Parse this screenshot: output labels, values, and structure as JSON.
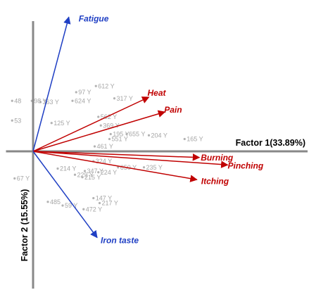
{
  "chart_data": {
    "type": "scatter",
    "xlabel": "Factor 1(33.89%)",
    "ylabel": "Factor 2 (15.55%)",
    "xlim": [
      -0.22,
      1.9
    ],
    "ylim": [
      -0.78,
      1.14
    ],
    "grid": false,
    "colors": {
      "symptom": "#c00000",
      "iron": "#1f3fc4",
      "axis": "#888888",
      "points": "#a6a6a6"
    },
    "vectors": [
      {
        "label": "Fatigue",
        "x": 0.29,
        "y": 1.09,
        "color": "#1f3fc4"
      },
      {
        "label": "Heat",
        "x": 0.94,
        "y": 0.44,
        "color": "#c00000"
      },
      {
        "label": "Pain",
        "x": 1.07,
        "y": 0.32,
        "color": "#c00000"
      },
      {
        "label": "Burning",
        "x": 1.35,
        "y": -0.05,
        "color": "#c00000"
      },
      {
        "label": "Pinching",
        "x": 1.58,
        "y": -0.11,
        "color": "#c00000"
      },
      {
        "label": "Itching",
        "x": 1.33,
        "y": -0.23,
        "color": "#c00000"
      },
      {
        "label": "Iron taste",
        "x": 0.52,
        "y": -0.7,
        "color": "#1f3fc4"
      }
    ],
    "points": [
      {
        "label": "612 Y",
        "x": 0.51,
        "y": 0.53
      },
      {
        "label": "97 Y",
        "x": 0.35,
        "y": 0.48
      },
      {
        "label": "317 Y",
        "x": 0.66,
        "y": 0.43
      },
      {
        "label": "624 Y",
        "x": 0.32,
        "y": 0.41
      },
      {
        "label": "363 Y",
        "x": 0.06,
        "y": 0.4
      },
      {
        "label": "98 Y",
        "x": -0.01,
        "y": 0.41
      },
      {
        "label": "48",
        "x": -0.17,
        "y": 0.41
      },
      {
        "label": "562 Y",
        "x": 0.53,
        "y": 0.28
      },
      {
        "label": "369 Y",
        "x": 0.55,
        "y": 0.21
      },
      {
        "label": "195 Y",
        "x": 0.63,
        "y": 0.14
      },
      {
        "label": "655 Y",
        "x": 0.76,
        "y": 0.14
      },
      {
        "label": "204 Y",
        "x": 0.94,
        "y": 0.13
      },
      {
        "label": "551 Y",
        "x": 0.62,
        "y": 0.1
      },
      {
        "label": "165 Y",
        "x": 1.23,
        "y": 0.1
      },
      {
        "label": "461 Y",
        "x": 0.5,
        "y": 0.04
      },
      {
        "label": "53",
        "x": -0.17,
        "y": 0.25
      },
      {
        "label": "125 Y",
        "x": 0.15,
        "y": 0.23
      },
      {
        "label": "324 Y",
        "x": 0.49,
        "y": -0.08
      },
      {
        "label": "650 Y",
        "x": 0.69,
        "y": -0.13
      },
      {
        "label": "235 Y",
        "x": 0.9,
        "y": -0.13
      },
      {
        "label": "224 Y",
        "x": 0.53,
        "y": -0.17
      },
      {
        "label": "347 Y",
        "x": 0.42,
        "y": -0.16
      },
      {
        "label": "229 Y",
        "x": 0.34,
        "y": -0.19
      },
      {
        "label": "214 Y",
        "x": 0.2,
        "y": -0.14
      },
      {
        "label": "215 Y",
        "x": 0.4,
        "y": -0.21
      },
      {
        "label": "67 Y",
        "x": -0.15,
        "y": -0.22
      },
      {
        "label": "147 Y",
        "x": 0.49,
        "y": -0.38
      },
      {
        "label": "217 Y",
        "x": 0.54,
        "y": -0.42
      },
      {
        "label": "485",
        "x": 0.12,
        "y": -0.41
      },
      {
        "label": "59 Y",
        "x": 0.24,
        "y": -0.44
      },
      {
        "label": "472 Y",
        "x": 0.41,
        "y": -0.47
      }
    ]
  }
}
